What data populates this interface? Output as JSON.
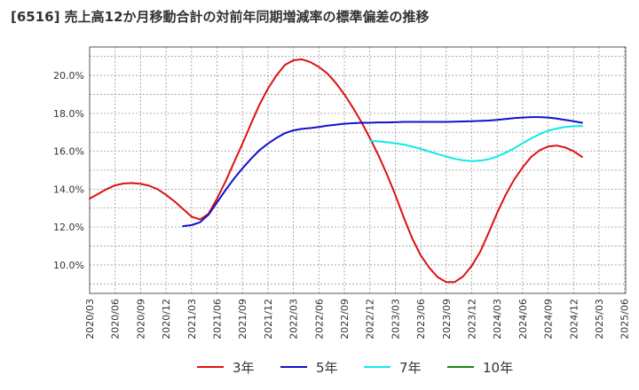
{
  "chart_data": {
    "type": "line",
    "title": "[6516]  売上高12か月移動合計の対前年同期増減率の標準偏差の推移",
    "xlabel": "",
    "ylabel": "",
    "ylim": [
      8.5,
      21.5
    ],
    "grid": true,
    "legend_position": "bottom",
    "x_ticks": [
      "2020/03",
      "2020/06",
      "2020/09",
      "2020/12",
      "2021/03",
      "2021/06",
      "2021/09",
      "2021/12",
      "2022/03",
      "2022/06",
      "2022/09",
      "2022/12",
      "2023/03",
      "2023/06",
      "2023/09",
      "2023/12",
      "2024/03",
      "2024/06",
      "2024/09",
      "2024/12",
      "2025/03",
      "2025/06"
    ],
    "y_ticks": [
      {
        "value": 10,
        "label": "10.0%"
      },
      {
        "value": 12,
        "label": "12.0%"
      },
      {
        "value": 14,
        "label": "14.0%"
      },
      {
        "value": 16,
        "label": "16.0%"
      },
      {
        "value": 18,
        "label": "18.0%"
      },
      {
        "value": 20,
        "label": "20.0%"
      }
    ],
    "series": [
      {
        "name": "3年",
        "color": "#dd1111",
        "points": [
          [
            "2020/03",
            13.5
          ],
          [
            "2020/04",
            13.75
          ],
          [
            "2020/05",
            14.0
          ],
          [
            "2020/06",
            14.2
          ],
          [
            "2020/07",
            14.3
          ],
          [
            "2020/08",
            14.32
          ],
          [
            "2020/09",
            14.28
          ],
          [
            "2020/10",
            14.18
          ],
          [
            "2020/11",
            14.0
          ],
          [
            "2020/12",
            13.7
          ],
          [
            "2021/01",
            13.35
          ],
          [
            "2021/02",
            12.95
          ],
          [
            "2021/03",
            12.55
          ],
          [
            "2021/04",
            12.4
          ],
          [
            "2021/05",
            12.7
          ],
          [
            "2021/06",
            13.5
          ],
          [
            "2021/07",
            14.4
          ],
          [
            "2021/08",
            15.4
          ],
          [
            "2021/09",
            16.4
          ],
          [
            "2021/10",
            17.45
          ],
          [
            "2021/11",
            18.45
          ],
          [
            "2021/12",
            19.3
          ],
          [
            "2022/01",
            20.0
          ],
          [
            "2022/02",
            20.55
          ],
          [
            "2022/03",
            20.8
          ],
          [
            "2022/04",
            20.85
          ],
          [
            "2022/05",
            20.7
          ],
          [
            "2022/06",
            20.45
          ],
          [
            "2022/07",
            20.1
          ],
          [
            "2022/08",
            19.6
          ],
          [
            "2022/09",
            19.0
          ],
          [
            "2022/10",
            18.3
          ],
          [
            "2022/11",
            17.55
          ],
          [
            "2022/12",
            16.7
          ],
          [
            "2023/01",
            15.8
          ],
          [
            "2023/02",
            14.8
          ],
          [
            "2023/03",
            13.7
          ],
          [
            "2023/04",
            12.5
          ],
          [
            "2023/05",
            11.4
          ],
          [
            "2023/06",
            10.5
          ],
          [
            "2023/07",
            9.85
          ],
          [
            "2023/08",
            9.35
          ],
          [
            "2023/09",
            9.1
          ],
          [
            "2023/10",
            9.1
          ],
          [
            "2023/11",
            9.4
          ],
          [
            "2023/12",
            9.95
          ],
          [
            "2024/01",
            10.7
          ],
          [
            "2024/02",
            11.7
          ],
          [
            "2024/03",
            12.75
          ],
          [
            "2024/04",
            13.7
          ],
          [
            "2024/05",
            14.5
          ],
          [
            "2024/06",
            15.15
          ],
          [
            "2024/07",
            15.7
          ],
          [
            "2024/08",
            16.05
          ],
          [
            "2024/09",
            16.25
          ],
          [
            "2024/10",
            16.3
          ],
          [
            "2024/11",
            16.2
          ],
          [
            "2024/12",
            16.0
          ],
          [
            "2025/01",
            15.7
          ]
        ]
      },
      {
        "name": "5年",
        "color": "#1111cc",
        "points": [
          [
            "2021/02",
            12.05
          ],
          [
            "2021/03",
            12.1
          ],
          [
            "2021/04",
            12.25
          ],
          [
            "2021/05",
            12.65
          ],
          [
            "2021/06",
            13.3
          ],
          [
            "2021/07",
            13.95
          ],
          [
            "2021/08",
            14.55
          ],
          [
            "2021/09",
            15.1
          ],
          [
            "2021/10",
            15.6
          ],
          [
            "2021/11",
            16.05
          ],
          [
            "2021/12",
            16.4
          ],
          [
            "2022/01",
            16.7
          ],
          [
            "2022/02",
            16.95
          ],
          [
            "2022/03",
            17.1
          ],
          [
            "2022/04",
            17.18
          ],
          [
            "2022/05",
            17.22
          ],
          [
            "2022/06",
            17.28
          ],
          [
            "2022/07",
            17.35
          ],
          [
            "2022/08",
            17.4
          ],
          [
            "2022/09",
            17.45
          ],
          [
            "2022/10",
            17.48
          ],
          [
            "2022/11",
            17.5
          ],
          [
            "2022/12",
            17.5
          ],
          [
            "2023/01",
            17.52
          ],
          [
            "2023/02",
            17.52
          ],
          [
            "2023/03",
            17.53
          ],
          [
            "2023/04",
            17.55
          ],
          [
            "2023/05",
            17.55
          ],
          [
            "2023/06",
            17.55
          ],
          [
            "2023/07",
            17.55
          ],
          [
            "2023/08",
            17.55
          ],
          [
            "2023/09",
            17.55
          ],
          [
            "2023/10",
            17.56
          ],
          [
            "2023/11",
            17.57
          ],
          [
            "2023/12",
            17.58
          ],
          [
            "2024/01",
            17.6
          ],
          [
            "2024/02",
            17.62
          ],
          [
            "2024/03",
            17.65
          ],
          [
            "2024/04",
            17.7
          ],
          [
            "2024/05",
            17.75
          ],
          [
            "2024/06",
            17.78
          ],
          [
            "2024/07",
            17.8
          ],
          [
            "2024/08",
            17.8
          ],
          [
            "2024/09",
            17.78
          ],
          [
            "2024/10",
            17.72
          ],
          [
            "2024/11",
            17.65
          ],
          [
            "2024/12",
            17.58
          ],
          [
            "2025/01",
            17.5
          ]
        ]
      },
      {
        "name": "7年",
        "color": "#11e8e8",
        "points": [
          [
            "2022/12",
            16.55
          ],
          [
            "2023/01",
            16.52
          ],
          [
            "2023/02",
            16.48
          ],
          [
            "2023/03",
            16.42
          ],
          [
            "2023/04",
            16.35
          ],
          [
            "2023/05",
            16.25
          ],
          [
            "2023/06",
            16.12
          ],
          [
            "2023/07",
            15.98
          ],
          [
            "2023/08",
            15.85
          ],
          [
            "2023/09",
            15.72
          ],
          [
            "2023/10",
            15.6
          ],
          [
            "2023/11",
            15.52
          ],
          [
            "2023/12",
            15.48
          ],
          [
            "2024/01",
            15.5
          ],
          [
            "2024/02",
            15.58
          ],
          [
            "2024/03",
            15.72
          ],
          [
            "2024/04",
            15.92
          ],
          [
            "2024/05",
            16.15
          ],
          [
            "2024/06",
            16.42
          ],
          [
            "2024/07",
            16.68
          ],
          [
            "2024/08",
            16.9
          ],
          [
            "2024/09",
            17.08
          ],
          [
            "2024/10",
            17.2
          ],
          [
            "2024/11",
            17.28
          ],
          [
            "2024/12",
            17.32
          ],
          [
            "2025/01",
            17.33
          ]
        ]
      },
      {
        "name": "10年",
        "color": "#118811",
        "points": []
      }
    ]
  }
}
